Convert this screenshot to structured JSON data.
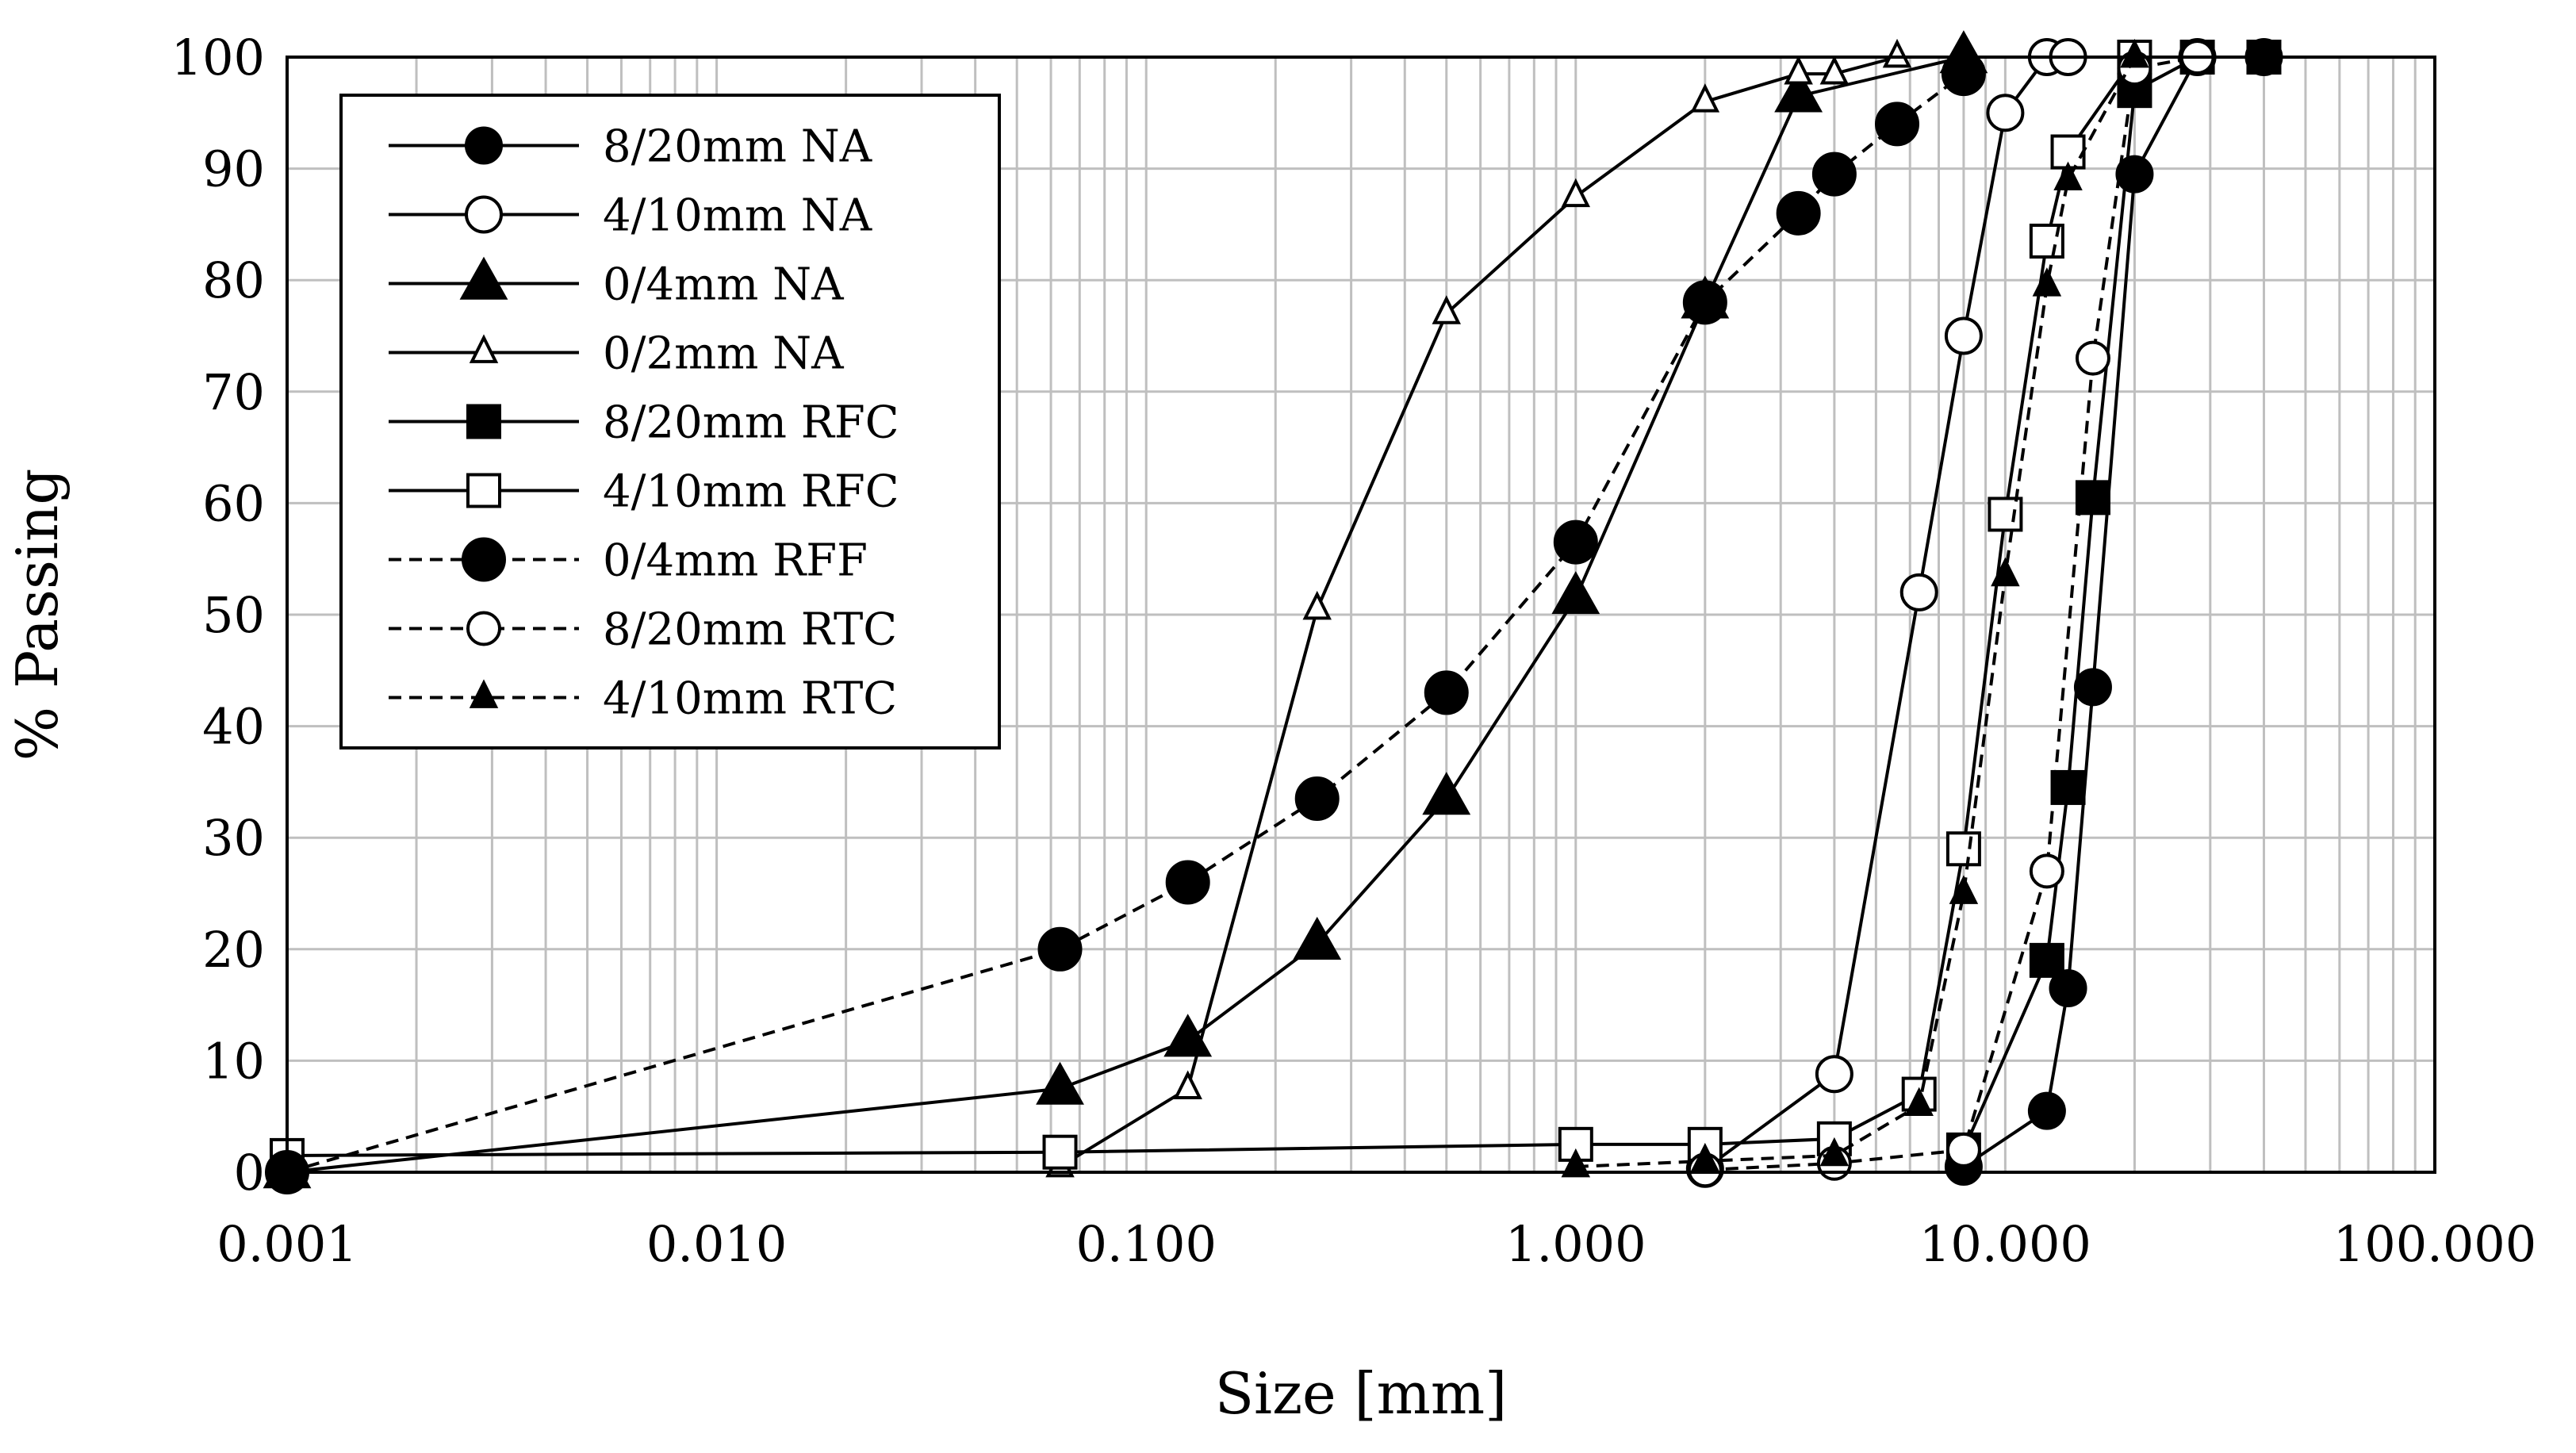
{
  "chart_data": {
    "type": "line",
    "title": "",
    "xlabel": "Size [mm]",
    "ylabel": "% Passing",
    "xscale": "log",
    "xlim": [
      0.001,
      100
    ],
    "ylim": [
      0,
      100
    ],
    "xticks": [
      0.001,
      0.01,
      0.1,
      1,
      10,
      100
    ],
    "xtick_labels": [
      "0.001",
      "0.010",
      "0.100",
      "1.000",
      "10.000",
      "100.000"
    ],
    "yticks": [
      0,
      10,
      20,
      30,
      40,
      50,
      60,
      70,
      80,
      90,
      100
    ],
    "ytick_labels": [
      "0",
      "10",
      "20",
      "30",
      "40",
      "50",
      "60",
      "70",
      "80",
      "90",
      "100"
    ],
    "grid": true,
    "legend_position": "top-left",
    "series": [
      {
        "name": "8/20mm NA",
        "marker": "circle-filled",
        "dashed": false,
        "x": [
          8,
          12.5,
          14,
          16,
          20,
          28,
          40
        ],
        "y": [
          0.5,
          5.5,
          16.5,
          43.5,
          89.5,
          100,
          100
        ]
      },
      {
        "name": "4/10mm NA",
        "marker": "circle-open",
        "dashed": false,
        "x": [
          2,
          4,
          6.3,
          8,
          10,
          12.5,
          14
        ],
        "y": [
          0.3,
          8.8,
          52,
          75,
          95,
          100,
          100
        ]
      },
      {
        "name": "0/4mm NA",
        "marker": "triangle-filled-large",
        "dashed": false,
        "x": [
          0.001,
          0.063,
          0.125,
          0.25,
          0.5,
          1,
          2,
          3.3,
          8
        ],
        "y": [
          0,
          7.5,
          11.8,
          20.5,
          33.5,
          51.5,
          78,
          96.5,
          100
        ]
      },
      {
        "name": "0/2mm NA",
        "marker": "triangle-open",
        "dashed": false,
        "x": [
          0.063,
          0.125,
          0.25,
          0.5,
          1,
          2,
          3.3,
          4,
          5.6
        ],
        "y": [
          0.5,
          7.5,
          50.5,
          77,
          87.5,
          96,
          98.5,
          98.5,
          100
        ]
      },
      {
        "name": "8/20mm RFC",
        "marker": "square-filled",
        "dashed": false,
        "x": [
          8,
          12.5,
          14,
          16,
          20,
          28,
          40
        ],
        "y": [
          2,
          19,
          34.5,
          60.5,
          97,
          100,
          100
        ]
      },
      {
        "name": "4/10mm RFC",
        "marker": "square-open",
        "dashed": false,
        "x": [
          0.001,
          0.063,
          1,
          2,
          4,
          6.3,
          8,
          10,
          12.5,
          14,
          20
        ],
        "y": [
          1.5,
          1.8,
          2.5,
          2.5,
          3,
          7,
          29,
          59,
          83.5,
          91.5,
          100
        ]
      },
      {
        "name": "0/4mm RFF",
        "marker": "circle-filled-large",
        "dashed": true,
        "x": [
          0.001,
          0.063,
          0.125,
          0.25,
          0.5,
          1,
          2,
          3.3,
          4,
          5.6,
          8
        ],
        "y": [
          0,
          20,
          26,
          33.5,
          43,
          56.5,
          78,
          86,
          89.5,
          94,
          98.5
        ]
      },
      {
        "name": "8/20mm RTC",
        "marker": "circle-open-small",
        "dashed": true,
        "x": [
          2,
          4,
          8,
          12.5,
          16,
          20,
          28
        ],
        "y": [
          0.2,
          0.8,
          2,
          27,
          73,
          99,
          100
        ]
      },
      {
        "name": "4/10mm RTC",
        "marker": "triangle-filled",
        "dashed": true,
        "x": [
          1,
          2,
          4,
          6.3,
          8,
          10,
          12.5,
          14,
          20
        ],
        "y": [
          0.5,
          1,
          1.5,
          6,
          25,
          53.5,
          79.5,
          89,
          100
        ]
      }
    ]
  }
}
